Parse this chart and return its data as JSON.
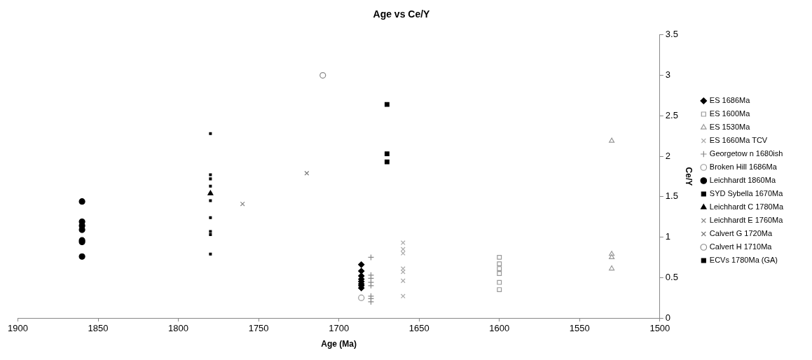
{
  "chart_data": {
    "type": "scatter",
    "title": "Age vs Ce/Y",
    "xlabel": "Age (Ma)",
    "ylabel": "Ce/Y",
    "xlim": [
      1900,
      1500
    ],
    "xticks": [
      1900,
      1850,
      1800,
      1750,
      1700,
      1650,
      1600,
      1550,
      1500
    ],
    "ylim": [
      0,
      3.5
    ],
    "yticks": [
      0,
      0.5,
      1,
      1.5,
      2,
      2.5,
      3,
      3.5
    ],
    "legend": "right",
    "series": [
      {
        "name": "ES 1686Ma",
        "color": "#000000",
        "marker": "diamond",
        "x": [
          1686,
          1686,
          1686,
          1686,
          1686,
          1686,
          1686,
          1686
        ],
        "values": [
          0.66,
          0.58,
          0.52,
          0.48,
          0.45,
          0.42,
          0.4,
          0.37
        ]
      },
      {
        "name": "ES 1600Ma",
        "color": "#999999",
        "marker": "square",
        "x": [
          1600,
          1600,
          1600,
          1600,
          1600,
          1600
        ],
        "values": [
          0.75,
          0.67,
          0.61,
          0.55,
          0.44,
          0.35
        ]
      },
      {
        "name": "ES 1530Ma",
        "color": "#999999",
        "marker": "triangle",
        "x": [
          1530,
          1530,
          1530,
          1530
        ],
        "values": [
          2.19,
          0.79,
          0.75,
          0.61
        ]
      },
      {
        "name": "ES 1660Ma TCV",
        "color": "#aaaaaa",
        "marker": "cross",
        "x": [
          1660,
          1660,
          1660,
          1660,
          1660,
          1660,
          1660
        ],
        "values": [
          0.93,
          0.85,
          0.8,
          0.61,
          0.57,
          0.46,
          0.27
        ]
      },
      {
        "name": "Georgetow n 1680ish",
        "color": "#888888",
        "marker": "plus",
        "x": [
          1680,
          1680,
          1680,
          1680,
          1680,
          1680,
          1680,
          1680
        ],
        "values": [
          0.75,
          0.53,
          0.49,
          0.44,
          0.4,
          0.27,
          0.24,
          0.2
        ]
      },
      {
        "name": "Broken Hill 1686Ma",
        "color": "#999999",
        "marker": "circle",
        "x": [
          1686
        ],
        "values": [
          0.25
        ]
      },
      {
        "name": "Leichhardt 1860Ma",
        "color": "#000000",
        "marker": "circle",
        "x": [
          1860,
          1860,
          1860,
          1860,
          1860,
          1860,
          1860
        ],
        "values": [
          1.44,
          1.19,
          1.14,
          1.09,
          0.96,
          0.94,
          0.76
        ]
      },
      {
        "name": "SYD Sybella 1670Ma",
        "color": "#000000",
        "marker": "square",
        "x": [
          1670,
          1670,
          1670
        ],
        "values": [
          2.64,
          2.03,
          1.93
        ]
      },
      {
        "name": "Leichhardt C 1780Ma",
        "color": "#000000",
        "marker": "triangle",
        "x": [
          1780
        ],
        "values": [
          1.54
        ]
      },
      {
        "name": "Leichhardt E 1760Ma",
        "color": "#888888",
        "marker": "cross",
        "x": [
          1760
        ],
        "values": [
          1.41
        ]
      },
      {
        "name": "Calvert G 1720Ma",
        "color": "#777777",
        "marker": "cross",
        "x": [
          1720
        ],
        "values": [
          1.79
        ]
      },
      {
        "name": "Calvert H 1710Ma",
        "color": "#888888",
        "marker": "circle",
        "x": [
          1710
        ],
        "values": [
          3.0
        ]
      },
      {
        "name": "ECVs 1780Ma (GA)",
        "color": "#000000",
        "marker": "square",
        "x": [
          1780,
          1780,
          1780,
          1780,
          1780,
          1780,
          1780,
          1780,
          1780
        ],
        "values": [
          2.28,
          1.77,
          1.72,
          1.63,
          1.45,
          1.24,
          1.07,
          1.03,
          0.79
        ]
      }
    ]
  }
}
